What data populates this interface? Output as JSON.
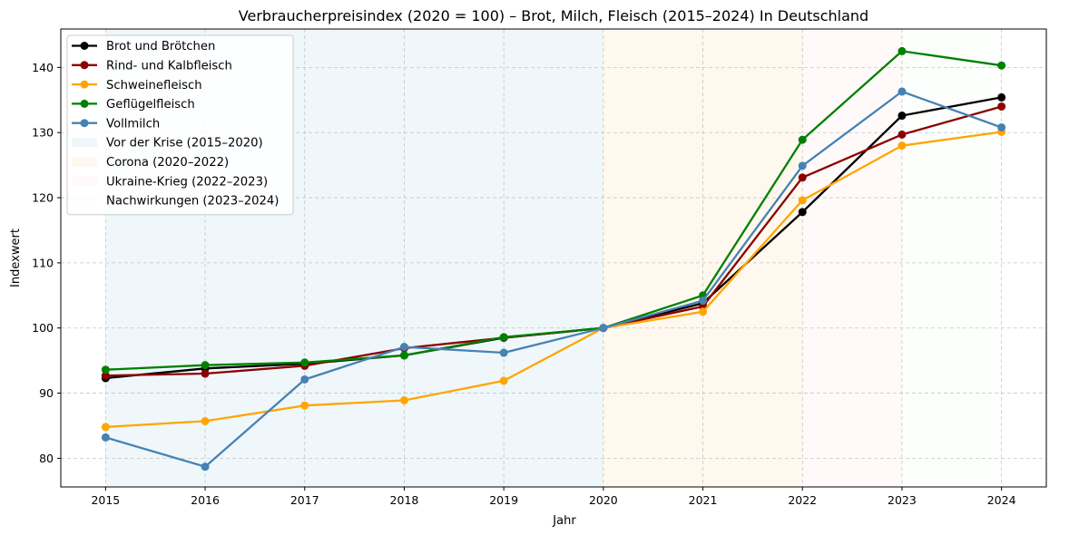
{
  "chart_data": {
    "type": "line",
    "title": "Verbraucherpreisindex (2020 = 100) – Brot, Milch, Fleisch (2015–2024) In Deutschland",
    "xlabel": "Jahr",
    "ylabel": "Indexwert",
    "x": [
      2015,
      2016,
      2017,
      2018,
      2019,
      2020,
      2021,
      2022,
      2023,
      2024
    ],
    "xlim": [
      2014.55,
      2024.45
    ],
    "ylim": [
      75.6,
      145.9
    ],
    "yticks": [
      80,
      90,
      100,
      110,
      120,
      130,
      140
    ],
    "grid": true,
    "legend_position": "top-left",
    "series": [
      {
        "name": "Brot und Brötchen",
        "color": "#000000",
        "values": [
          92.3,
          93.8,
          94.5,
          95.8,
          98.5,
          100.0,
          103.8,
          117.8,
          132.6,
          135.4
        ]
      },
      {
        "name": "Rind- und Kalbfleisch",
        "color": "#8b0000",
        "values": [
          92.7,
          93.0,
          94.2,
          96.9,
          98.5,
          100.0,
          103.3,
          123.1,
          129.7,
          134.0
        ]
      },
      {
        "name": "Schweinefleisch",
        "color": "#ffa500",
        "values": [
          84.8,
          85.7,
          88.1,
          88.9,
          91.9,
          100.0,
          102.5,
          119.6,
          128.0,
          130.1
        ]
      },
      {
        "name": "Geflügelfleisch",
        "color": "#008000",
        "values": [
          93.6,
          94.3,
          94.7,
          95.8,
          98.6,
          100.0,
          105.0,
          128.9,
          142.5,
          140.3
        ]
      },
      {
        "name": "Vollmilch",
        "color": "#4682b4",
        "values": [
          83.2,
          78.7,
          92.1,
          97.1,
          96.2,
          100.0,
          104.2,
          124.9,
          136.3,
          130.8
        ]
      }
    ],
    "periods": [
      {
        "name": "Vor der Krise (2015–2020)",
        "start": 2015,
        "end": 2020,
        "color": "#add8e6"
      },
      {
        "name": "Corona (2020–2022)",
        "start": 2020,
        "end": 2022,
        "color": "#ffdead"
      },
      {
        "name": "Ukraine-Krieg (2022–2023)",
        "start": 2022,
        "end": 2023,
        "color": "#ffe4e1"
      },
      {
        "name": "Nachwirkungen (2023–2024)",
        "start": 2023,
        "end": 2024,
        "color": "#f0fff0"
      }
    ]
  }
}
